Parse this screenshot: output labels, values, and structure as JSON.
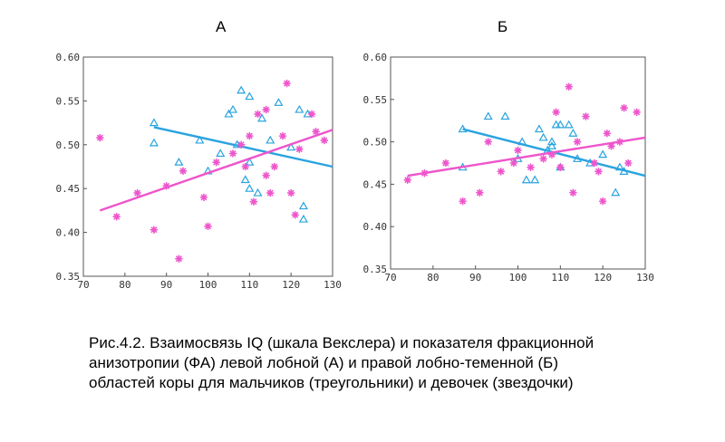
{
  "chart_data": [
    {
      "type": "scatter",
      "panel_label": "А",
      "xlim": [
        70,
        130
      ],
      "ylim": [
        0.35,
        0.6
      ],
      "x_ticks": [
        "70",
        "80",
        "90",
        "100",
        "110",
        "120",
        "130"
      ],
      "y_ticks": [
        "0.35",
        "0.40",
        "0.45",
        "0.50",
        "0.55",
        "0.60"
      ],
      "grid": false,
      "series": [
        {
          "marker": "triangle",
          "color": "#29a3df",
          "points": [
            [
              87,
              0.525
            ],
            [
              87,
              0.502
            ],
            [
              93,
              0.48
            ],
            [
              98,
              0.505
            ],
            [
              100,
              0.47
            ],
            [
              103,
              0.49
            ],
            [
              105,
              0.535
            ],
            [
              106,
              0.54
            ],
            [
              107,
              0.5
            ],
            [
              108,
              0.562
            ],
            [
              109,
              0.46
            ],
            [
              110,
              0.555
            ],
            [
              110,
              0.48
            ],
            [
              110,
              0.45
            ],
            [
              112,
              0.445
            ],
            [
              113,
              0.53
            ],
            [
              115,
              0.505
            ],
            [
              117,
              0.548
            ],
            [
              120,
              0.497
            ],
            [
              122,
              0.54
            ],
            [
              123,
              0.43
            ],
            [
              123,
              0.415
            ],
            [
              124,
              0.535
            ]
          ],
          "fit": [
            [
              87,
              0.52
            ],
            [
              130,
              0.475
            ]
          ]
        },
        {
          "marker": "star",
          "color": "#ee55cc",
          "points": [
            [
              74,
              0.508
            ],
            [
              78,
              0.418
            ],
            [
              83,
              0.445
            ],
            [
              87,
              0.403
            ],
            [
              90,
              0.453
            ],
            [
              93,
              0.37
            ],
            [
              94,
              0.47
            ],
            [
              99,
              0.44
            ],
            [
              100,
              0.407
            ],
            [
              102,
              0.48
            ],
            [
              106,
              0.49
            ],
            [
              108,
              0.5
            ],
            [
              109,
              0.475
            ],
            [
              110,
              0.51
            ],
            [
              111,
              0.435
            ],
            [
              112,
              0.535
            ],
            [
              114,
              0.54
            ],
            [
              114,
              0.465
            ],
            [
              115,
              0.445
            ],
            [
              116,
              0.475
            ],
            [
              118,
              0.51
            ],
            [
              119,
              0.57
            ],
            [
              120,
              0.445
            ],
            [
              121,
              0.42
            ],
            [
              122,
              0.495
            ],
            [
              125,
              0.535
            ],
            [
              126,
              0.515
            ],
            [
              128,
              0.505
            ]
          ],
          "fit": [
            [
              74,
              0.425
            ],
            [
              130,
              0.517
            ]
          ]
        }
      ]
    },
    {
      "type": "scatter",
      "panel_label": "Б",
      "xlim": [
        70,
        130
      ],
      "ylim": [
        0.35,
        0.6
      ],
      "x_ticks": [
        "70",
        "80",
        "90",
        "100",
        "110",
        "120",
        "130"
      ],
      "y_ticks": [
        "0.35",
        "0.40",
        "0.45",
        "0.50",
        "0.55",
        "0.60"
      ],
      "grid": false,
      "series": [
        {
          "marker": "triangle",
          "color": "#29a3df",
          "points": [
            [
              87,
              0.515
            ],
            [
              87,
              0.47
            ],
            [
              93,
              0.53
            ],
            [
              97,
              0.53
            ],
            [
              100,
              0.48
            ],
            [
              101,
              0.5
            ],
            [
              102,
              0.455
            ],
            [
              104,
              0.455
            ],
            [
              105,
              0.515
            ],
            [
              106,
              0.505
            ],
            [
              107,
              0.49
            ],
            [
              108,
              0.5
            ],
            [
              108,
              0.495
            ],
            [
              109,
              0.52
            ],
            [
              110,
              0.52
            ],
            [
              110,
              0.47
            ],
            [
              112,
              0.52
            ],
            [
              113,
              0.51
            ],
            [
              114,
              0.48
            ],
            [
              117,
              0.475
            ],
            [
              120,
              0.485
            ],
            [
              123,
              0.44
            ],
            [
              124,
              0.47
            ],
            [
              125,
              0.465
            ]
          ],
          "fit": [
            [
              87,
              0.515
            ],
            [
              130,
              0.46
            ]
          ]
        },
        {
          "marker": "star",
          "color": "#ee55cc",
          "points": [
            [
              74,
              0.455
            ],
            [
              78,
              0.463
            ],
            [
              83,
              0.475
            ],
            [
              87,
              0.43
            ],
            [
              91,
              0.44
            ],
            [
              93,
              0.5
            ],
            [
              96,
              0.465
            ],
            [
              99,
              0.475
            ],
            [
              100,
              0.49
            ],
            [
              103,
              0.47
            ],
            [
              106,
              0.48
            ],
            [
              108,
              0.485
            ],
            [
              109,
              0.535
            ],
            [
              110,
              0.47
            ],
            [
              112,
              0.565
            ],
            [
              113,
              0.44
            ],
            [
              114,
              0.5
            ],
            [
              116,
              0.53
            ],
            [
              118,
              0.475
            ],
            [
              119,
              0.465
            ],
            [
              120,
              0.43
            ],
            [
              121,
              0.51
            ],
            [
              122,
              0.495
            ],
            [
              124,
              0.5
            ],
            [
              125,
              0.54
            ],
            [
              126,
              0.475
            ],
            [
              128,
              0.535
            ]
          ],
          "fit": [
            [
              74,
              0.46
            ],
            [
              130,
              0.505
            ]
          ]
        }
      ]
    }
  ],
  "caption": {
    "line1": "Рис.4.2. Взаимосвязь IQ (шкала Векслера) и показателя фракционной",
    "line2": "анизотропии (ФА) левой лобной (А) и правой лобно-теменной (Б)",
    "line3": "областей коры для мальчиков (треугольники) и девочек (звездочки)"
  }
}
